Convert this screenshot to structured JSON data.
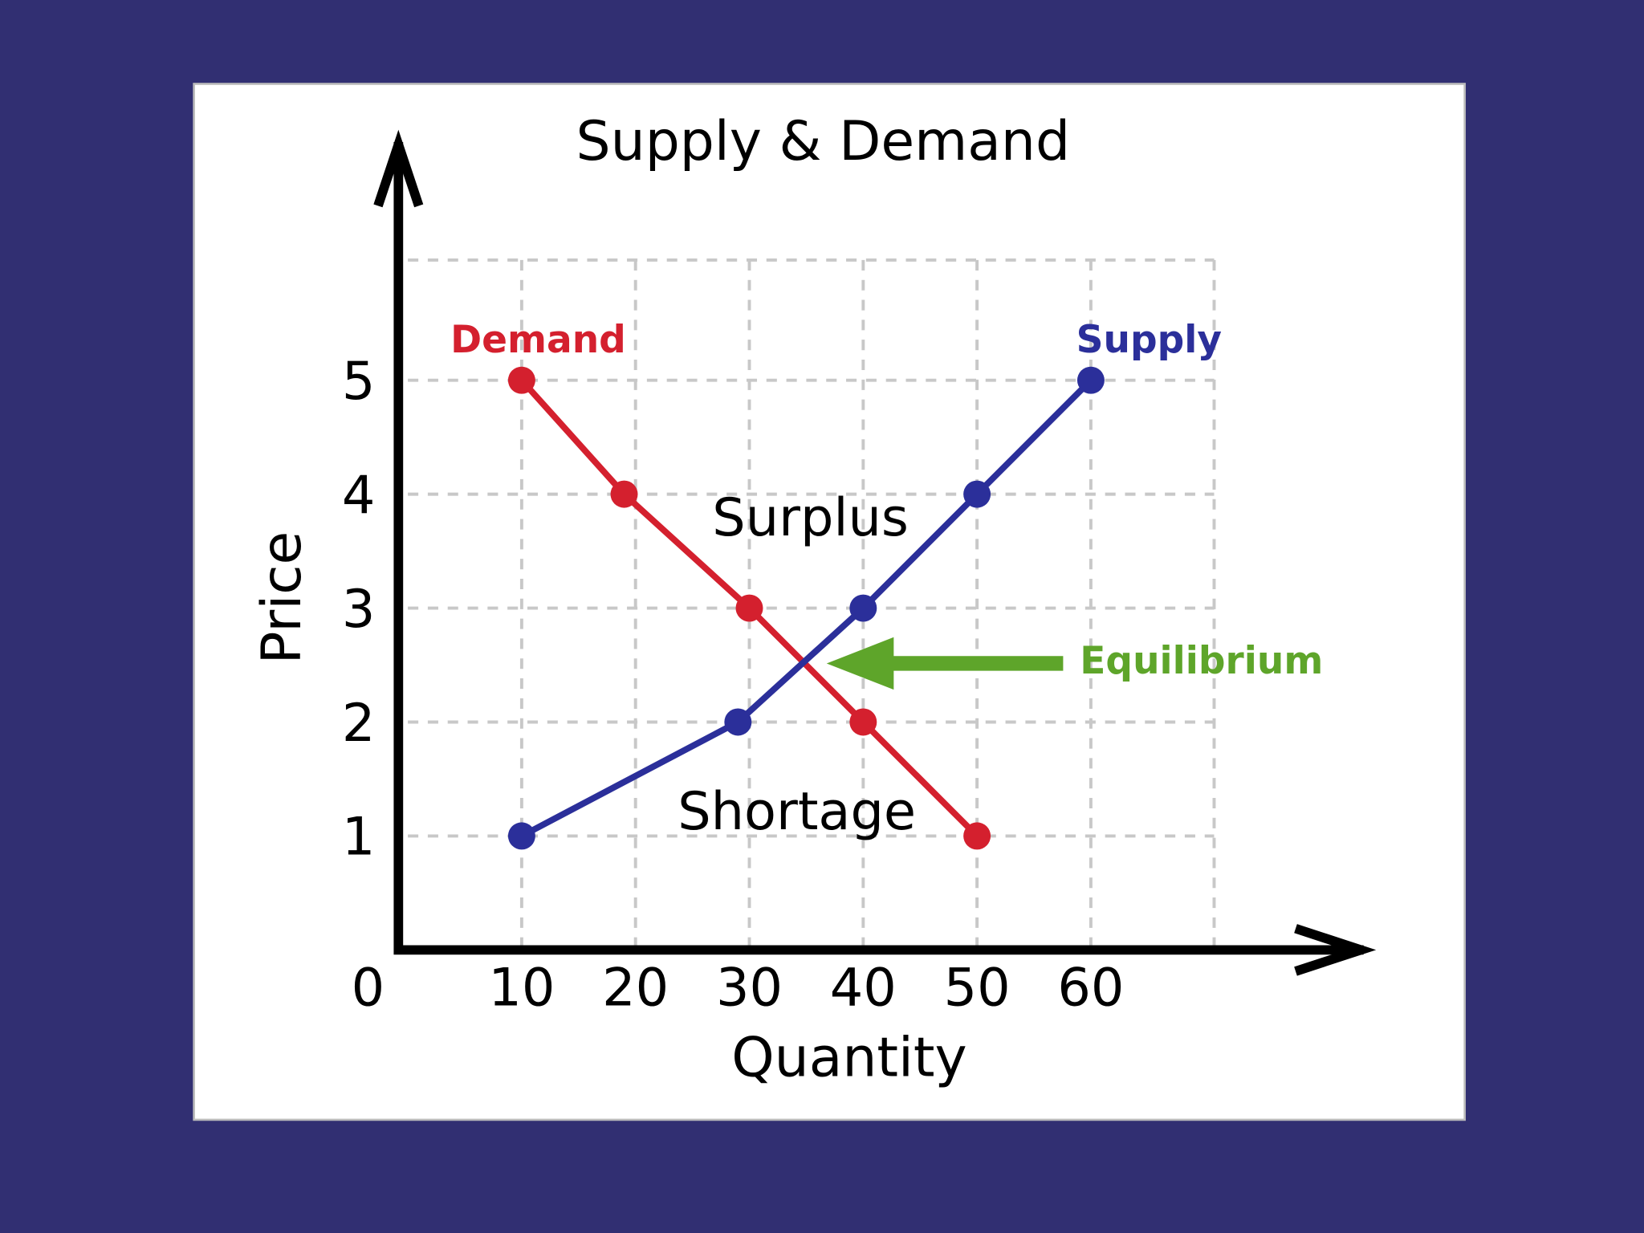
{
  "chart_data": {
    "type": "line",
    "title": "Supply & Demand",
    "x_label": "Quantity",
    "y_label": "Price",
    "xlim": [
      0,
      70
    ],
    "ylim": [
      0,
      6
    ],
    "xticks": [
      0,
      10,
      20,
      30,
      40,
      50,
      60
    ],
    "yticks": [
      1,
      2,
      3,
      4,
      5
    ],
    "grid": true,
    "series": [
      {
        "name": "Demand",
        "color": "#d4202e",
        "x": [
          10,
          19,
          30,
          40,
          50
        ],
        "values": [
          5,
          4,
          3,
          2,
          1
        ]
      },
      {
        "name": "Supply",
        "color": "#2b2f9a",
        "x": [
          10,
          29,
          40,
          50,
          60
        ],
        "values": [
          1,
          2,
          3,
          4,
          5
        ]
      }
    ],
    "annotations": {
      "surplus": "Surplus",
      "shortage": "Shortage",
      "equilibrium": "Equilibrium",
      "equilibrium_color": "#5ea52a"
    }
  }
}
